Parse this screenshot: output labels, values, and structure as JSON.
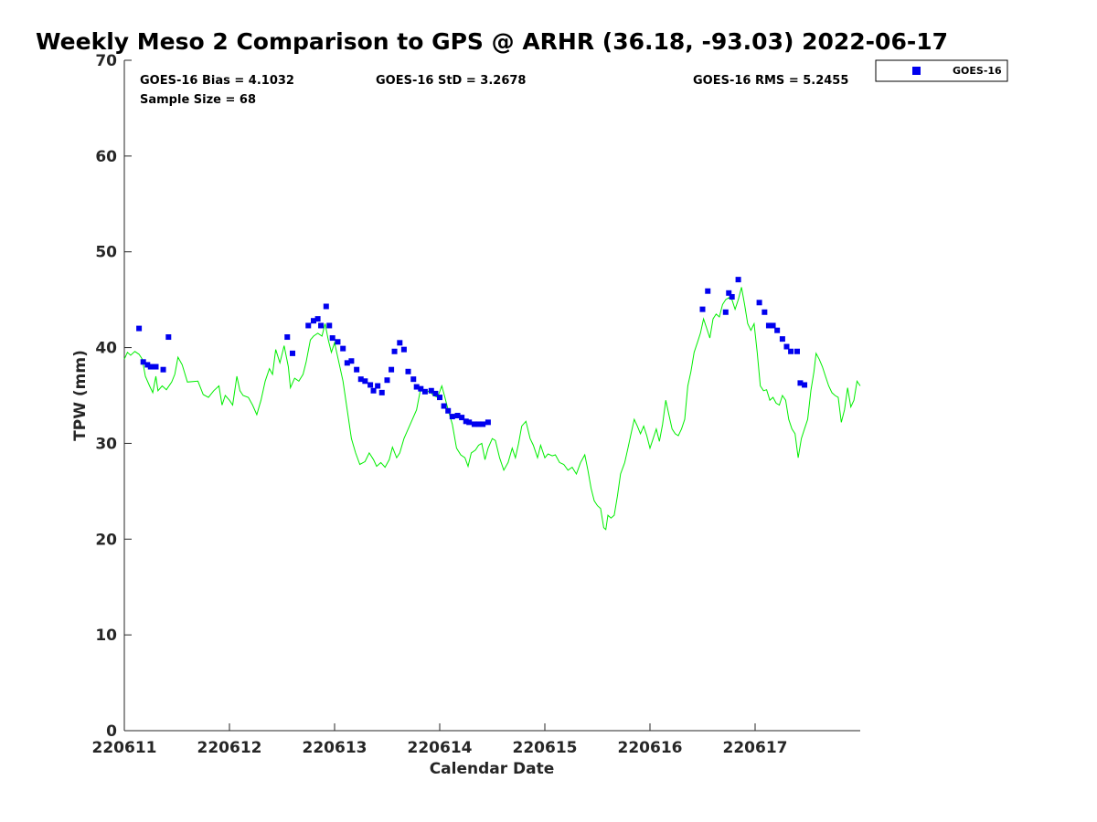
{
  "chart_data": {
    "type": "scatter",
    "title": "Weekly Meso 2 Comparison to GPS @ ARHR (36.18, -93.03) 2022-06-17",
    "xlabel": "Calendar Date",
    "ylabel": "TPW (mm)",
    "xlim": [
      0,
      7
    ],
    "ylim": [
      0,
      70
    ],
    "x_ticks": [
      0,
      1,
      2,
      3,
      4,
      5,
      6
    ],
    "x_tick_labels": [
      "220611",
      "220612",
      "220613",
      "220614",
      "220615",
      "220616",
      "220617"
    ],
    "y_ticks": [
      0,
      10,
      20,
      30,
      40,
      50,
      60,
      70
    ],
    "y_tick_labels": [
      "0",
      "10",
      "20",
      "30",
      "40",
      "50",
      "60",
      "70"
    ],
    "grid": false,
    "legend": {
      "placement": "top-right-outside",
      "entries": [
        "GOES-16"
      ]
    },
    "stats": {
      "bias": "GOES-16 Bias = 4.1032",
      "std": "GOES-16 StD = 3.2678",
      "rms": "GOES-16 RMS = 5.2455",
      "sample_size": "Sample Size = 68"
    },
    "series": [
      {
        "name": "GOES-16",
        "kind": "scatter",
        "color": "#0000ee",
        "points": [
          [
            0.14,
            42.0
          ],
          [
            0.18,
            38.5
          ],
          [
            0.22,
            38.2
          ],
          [
            0.25,
            38.0
          ],
          [
            0.3,
            38.0
          ],
          [
            0.37,
            37.7
          ],
          [
            0.42,
            41.1
          ],
          [
            1.55,
            41.1
          ],
          [
            1.6,
            39.4
          ],
          [
            1.75,
            42.3
          ],
          [
            1.8,
            42.8
          ],
          [
            1.84,
            43.0
          ],
          [
            1.87,
            42.3
          ],
          [
            1.92,
            44.3
          ],
          [
            1.95,
            42.3
          ],
          [
            1.98,
            41.0
          ],
          [
            2.03,
            40.6
          ],
          [
            2.08,
            39.9
          ],
          [
            2.12,
            38.4
          ],
          [
            2.16,
            38.6
          ],
          [
            2.21,
            37.7
          ],
          [
            2.25,
            36.7
          ],
          [
            2.29,
            36.5
          ],
          [
            2.34,
            36.1
          ],
          [
            2.37,
            35.5
          ],
          [
            2.41,
            36.0
          ],
          [
            2.45,
            35.3
          ],
          [
            2.5,
            36.6
          ],
          [
            2.54,
            37.7
          ],
          [
            2.57,
            39.6
          ],
          [
            2.62,
            40.5
          ],
          [
            2.66,
            39.8
          ],
          [
            2.7,
            37.5
          ],
          [
            2.75,
            36.7
          ],
          [
            2.78,
            35.9
          ],
          [
            2.82,
            35.7
          ],
          [
            2.86,
            35.4
          ],
          [
            2.92,
            35.5
          ],
          [
            2.96,
            35.2
          ],
          [
            3.0,
            34.8
          ],
          [
            3.04,
            33.9
          ],
          [
            3.08,
            33.4
          ],
          [
            3.12,
            32.8
          ],
          [
            3.17,
            32.9
          ],
          [
            3.21,
            32.7
          ],
          [
            3.25,
            32.3
          ],
          [
            3.28,
            32.2
          ],
          [
            3.33,
            32.0
          ],
          [
            3.37,
            32.0
          ],
          [
            3.41,
            32.0
          ],
          [
            3.46,
            32.2
          ],
          [
            5.5,
            44.0
          ],
          [
            5.55,
            45.9
          ],
          [
            5.72,
            43.7
          ],
          [
            5.75,
            45.7
          ],
          [
            5.78,
            45.3
          ],
          [
            5.84,
            47.1
          ],
          [
            6.04,
            44.7
          ],
          [
            6.09,
            43.7
          ],
          [
            6.13,
            42.3
          ],
          [
            6.17,
            42.3
          ],
          [
            6.21,
            41.8
          ],
          [
            6.26,
            40.9
          ],
          [
            6.3,
            40.1
          ],
          [
            6.34,
            39.6
          ],
          [
            6.4,
            39.6
          ],
          [
            6.43,
            36.3
          ],
          [
            6.47,
            36.1
          ]
        ]
      },
      {
        "name": "GPS",
        "kind": "line",
        "color": "#00ee00",
        "points": [
          [
            0.0,
            38.8
          ],
          [
            0.03,
            39.5
          ],
          [
            0.06,
            39.2
          ],
          [
            0.1,
            39.6
          ],
          [
            0.14,
            39.3
          ],
          [
            0.17,
            38.8
          ],
          [
            0.2,
            37.0
          ],
          [
            0.24,
            36.0
          ],
          [
            0.27,
            35.3
          ],
          [
            0.3,
            37.0
          ],
          [
            0.32,
            35.5
          ],
          [
            0.36,
            36.0
          ],
          [
            0.4,
            35.6
          ],
          [
            0.45,
            36.4
          ],
          [
            0.48,
            37.2
          ],
          [
            0.51,
            39.0
          ],
          [
            0.55,
            38.2
          ],
          [
            0.6,
            36.4
          ],
          [
            0.7,
            36.5
          ],
          [
            0.75,
            35.1
          ],
          [
            0.8,
            34.8
          ],
          [
            0.85,
            35.5
          ],
          [
            0.9,
            36.0
          ],
          [
            0.93,
            34.0
          ],
          [
            0.96,
            35.0
          ],
          [
            1.0,
            34.5
          ],
          [
            1.03,
            34.0
          ],
          [
            1.07,
            37.0
          ],
          [
            1.1,
            35.5
          ],
          [
            1.13,
            35.0
          ],
          [
            1.18,
            34.8
          ],
          [
            1.22,
            34.0
          ],
          [
            1.26,
            33.0
          ],
          [
            1.3,
            34.5
          ],
          [
            1.34,
            36.5
          ],
          [
            1.38,
            37.8
          ],
          [
            1.41,
            37.2
          ],
          [
            1.44,
            39.8
          ],
          [
            1.48,
            38.4
          ],
          [
            1.52,
            40.2
          ],
          [
            1.56,
            38.0
          ],
          [
            1.58,
            35.8
          ],
          [
            1.62,
            36.8
          ],
          [
            1.66,
            36.5
          ],
          [
            1.7,
            37.2
          ],
          [
            1.73,
            38.5
          ],
          [
            1.77,
            40.8
          ],
          [
            1.8,
            41.2
          ],
          [
            1.84,
            41.5
          ],
          [
            1.88,
            41.2
          ],
          [
            1.91,
            42.5
          ],
          [
            1.94,
            40.8
          ],
          [
            1.97,
            39.5
          ],
          [
            2.0,
            40.5
          ],
          [
            2.04,
            38.5
          ],
          [
            2.08,
            36.5
          ],
          [
            2.12,
            33.5
          ],
          [
            2.16,
            30.5
          ],
          [
            2.2,
            29.0
          ],
          [
            2.24,
            27.8
          ],
          [
            2.29,
            28.1
          ],
          [
            2.33,
            29.0
          ],
          [
            2.37,
            28.3
          ],
          [
            2.4,
            27.6
          ],
          [
            2.44,
            28.0
          ],
          [
            2.48,
            27.5
          ],
          [
            2.52,
            28.3
          ],
          [
            2.55,
            29.6
          ],
          [
            2.59,
            28.5
          ],
          [
            2.62,
            29.0
          ],
          [
            2.66,
            30.5
          ],
          [
            2.7,
            31.5
          ],
          [
            2.74,
            32.5
          ],
          [
            2.78,
            33.5
          ],
          [
            2.82,
            35.8
          ],
          [
            2.86,
            35.2
          ],
          [
            2.9,
            35.5
          ],
          [
            2.94,
            35.0
          ],
          [
            2.98,
            34.8
          ],
          [
            3.02,
            36.0
          ],
          [
            3.05,
            34.8
          ],
          [
            3.08,
            33.5
          ],
          [
            3.12,
            32.0
          ],
          [
            3.16,
            29.5
          ],
          [
            3.2,
            28.8
          ],
          [
            3.24,
            28.5
          ],
          [
            3.27,
            27.6
          ],
          [
            3.3,
            29.0
          ],
          [
            3.34,
            29.3
          ],
          [
            3.37,
            29.8
          ],
          [
            3.4,
            30.0
          ],
          [
            3.43,
            28.3
          ],
          [
            3.46,
            29.5
          ],
          [
            3.5,
            30.5
          ],
          [
            3.53,
            30.3
          ],
          [
            3.57,
            28.5
          ],
          [
            3.61,
            27.2
          ],
          [
            3.65,
            28.0
          ],
          [
            3.69,
            29.5
          ],
          [
            3.72,
            28.5
          ],
          [
            3.75,
            30.0
          ],
          [
            3.78,
            31.8
          ],
          [
            3.82,
            32.3
          ],
          [
            3.86,
            30.5
          ],
          [
            3.89,
            29.8
          ],
          [
            3.93,
            28.5
          ],
          [
            3.96,
            29.8
          ],
          [
            4.0,
            28.5
          ],
          [
            4.03,
            28.9
          ],
          [
            4.07,
            28.7
          ],
          [
            4.1,
            28.8
          ],
          [
            4.14,
            28.0
          ],
          [
            4.18,
            27.8
          ],
          [
            4.22,
            27.2
          ],
          [
            4.26,
            27.5
          ],
          [
            4.3,
            26.8
          ],
          [
            4.34,
            28.0
          ],
          [
            4.38,
            28.8
          ],
          [
            4.41,
            27.2
          ],
          [
            4.44,
            25.3
          ],
          [
            4.47,
            24.0
          ],
          [
            4.5,
            23.5
          ],
          [
            4.53,
            23.2
          ],
          [
            4.56,
            21.2
          ],
          [
            4.58,
            21.0
          ],
          [
            4.6,
            22.5
          ],
          [
            4.63,
            22.2
          ],
          [
            4.66,
            22.5
          ],
          [
            4.69,
            24.5
          ],
          [
            4.72,
            26.8
          ],
          [
            4.76,
            28.0
          ],
          [
            4.79,
            29.5
          ],
          [
            4.82,
            31.0
          ],
          [
            4.85,
            32.5
          ],
          [
            4.88,
            31.8
          ],
          [
            4.91,
            31.0
          ],
          [
            4.94,
            31.8
          ],
          [
            4.97,
            30.8
          ],
          [
            5.0,
            29.5
          ],
          [
            5.03,
            30.5
          ],
          [
            5.06,
            31.5
          ],
          [
            5.09,
            30.2
          ],
          [
            5.12,
            32.0
          ],
          [
            5.15,
            34.5
          ],
          [
            5.18,
            33.0
          ],
          [
            5.21,
            31.5
          ],
          [
            5.24,
            31.0
          ],
          [
            5.27,
            30.8
          ],
          [
            5.3,
            31.5
          ],
          [
            5.33,
            32.5
          ],
          [
            5.36,
            36.0
          ],
          [
            5.39,
            37.5
          ],
          [
            5.42,
            39.5
          ],
          [
            5.45,
            40.5
          ],
          [
            5.48,
            41.5
          ],
          [
            5.51,
            43.0
          ],
          [
            5.54,
            42.0
          ],
          [
            5.57,
            41.0
          ],
          [
            5.6,
            43.0
          ],
          [
            5.63,
            43.5
          ],
          [
            5.66,
            43.2
          ],
          [
            5.69,
            44.5
          ],
          [
            5.72,
            45.0
          ],
          [
            5.75,
            45.2
          ],
          [
            5.78,
            45.0
          ],
          [
            5.81,
            44.0
          ],
          [
            5.84,
            45.0
          ],
          [
            5.87,
            46.3
          ],
          [
            5.9,
            44.5
          ],
          [
            5.93,
            42.5
          ],
          [
            5.96,
            41.8
          ],
          [
            5.99,
            42.5
          ],
          [
            6.02,
            39.5
          ],
          [
            6.05,
            36.0
          ],
          [
            6.08,
            35.5
          ],
          [
            6.11,
            35.6
          ],
          [
            6.14,
            34.5
          ],
          [
            6.17,
            34.8
          ],
          [
            6.2,
            34.2
          ],
          [
            6.23,
            34.0
          ],
          [
            6.26,
            35.0
          ],
          [
            6.29,
            34.5
          ],
          [
            6.32,
            32.5
          ],
          [
            6.35,
            31.5
          ],
          [
            6.38,
            31.0
          ],
          [
            6.41,
            28.5
          ],
          [
            6.44,
            30.5
          ],
          [
            6.47,
            31.5
          ],
          [
            6.5,
            32.5
          ],
          [
            6.53,
            35.5
          ],
          [
            6.56,
            37.5
          ],
          [
            6.58,
            39.4
          ],
          [
            6.61,
            38.8
          ],
          [
            6.64,
            38.0
          ],
          [
            6.67,
            37.0
          ],
          [
            6.7,
            36.0
          ],
          [
            6.73,
            35.3
          ],
          [
            6.76,
            35.0
          ],
          [
            6.79,
            34.8
          ],
          [
            6.82,
            32.2
          ],
          [
            6.85,
            33.5
          ],
          [
            6.88,
            35.8
          ],
          [
            6.91,
            33.8
          ],
          [
            6.94,
            34.5
          ],
          [
            6.97,
            36.5
          ],
          [
            7.0,
            36.0
          ]
        ]
      }
    ]
  }
}
